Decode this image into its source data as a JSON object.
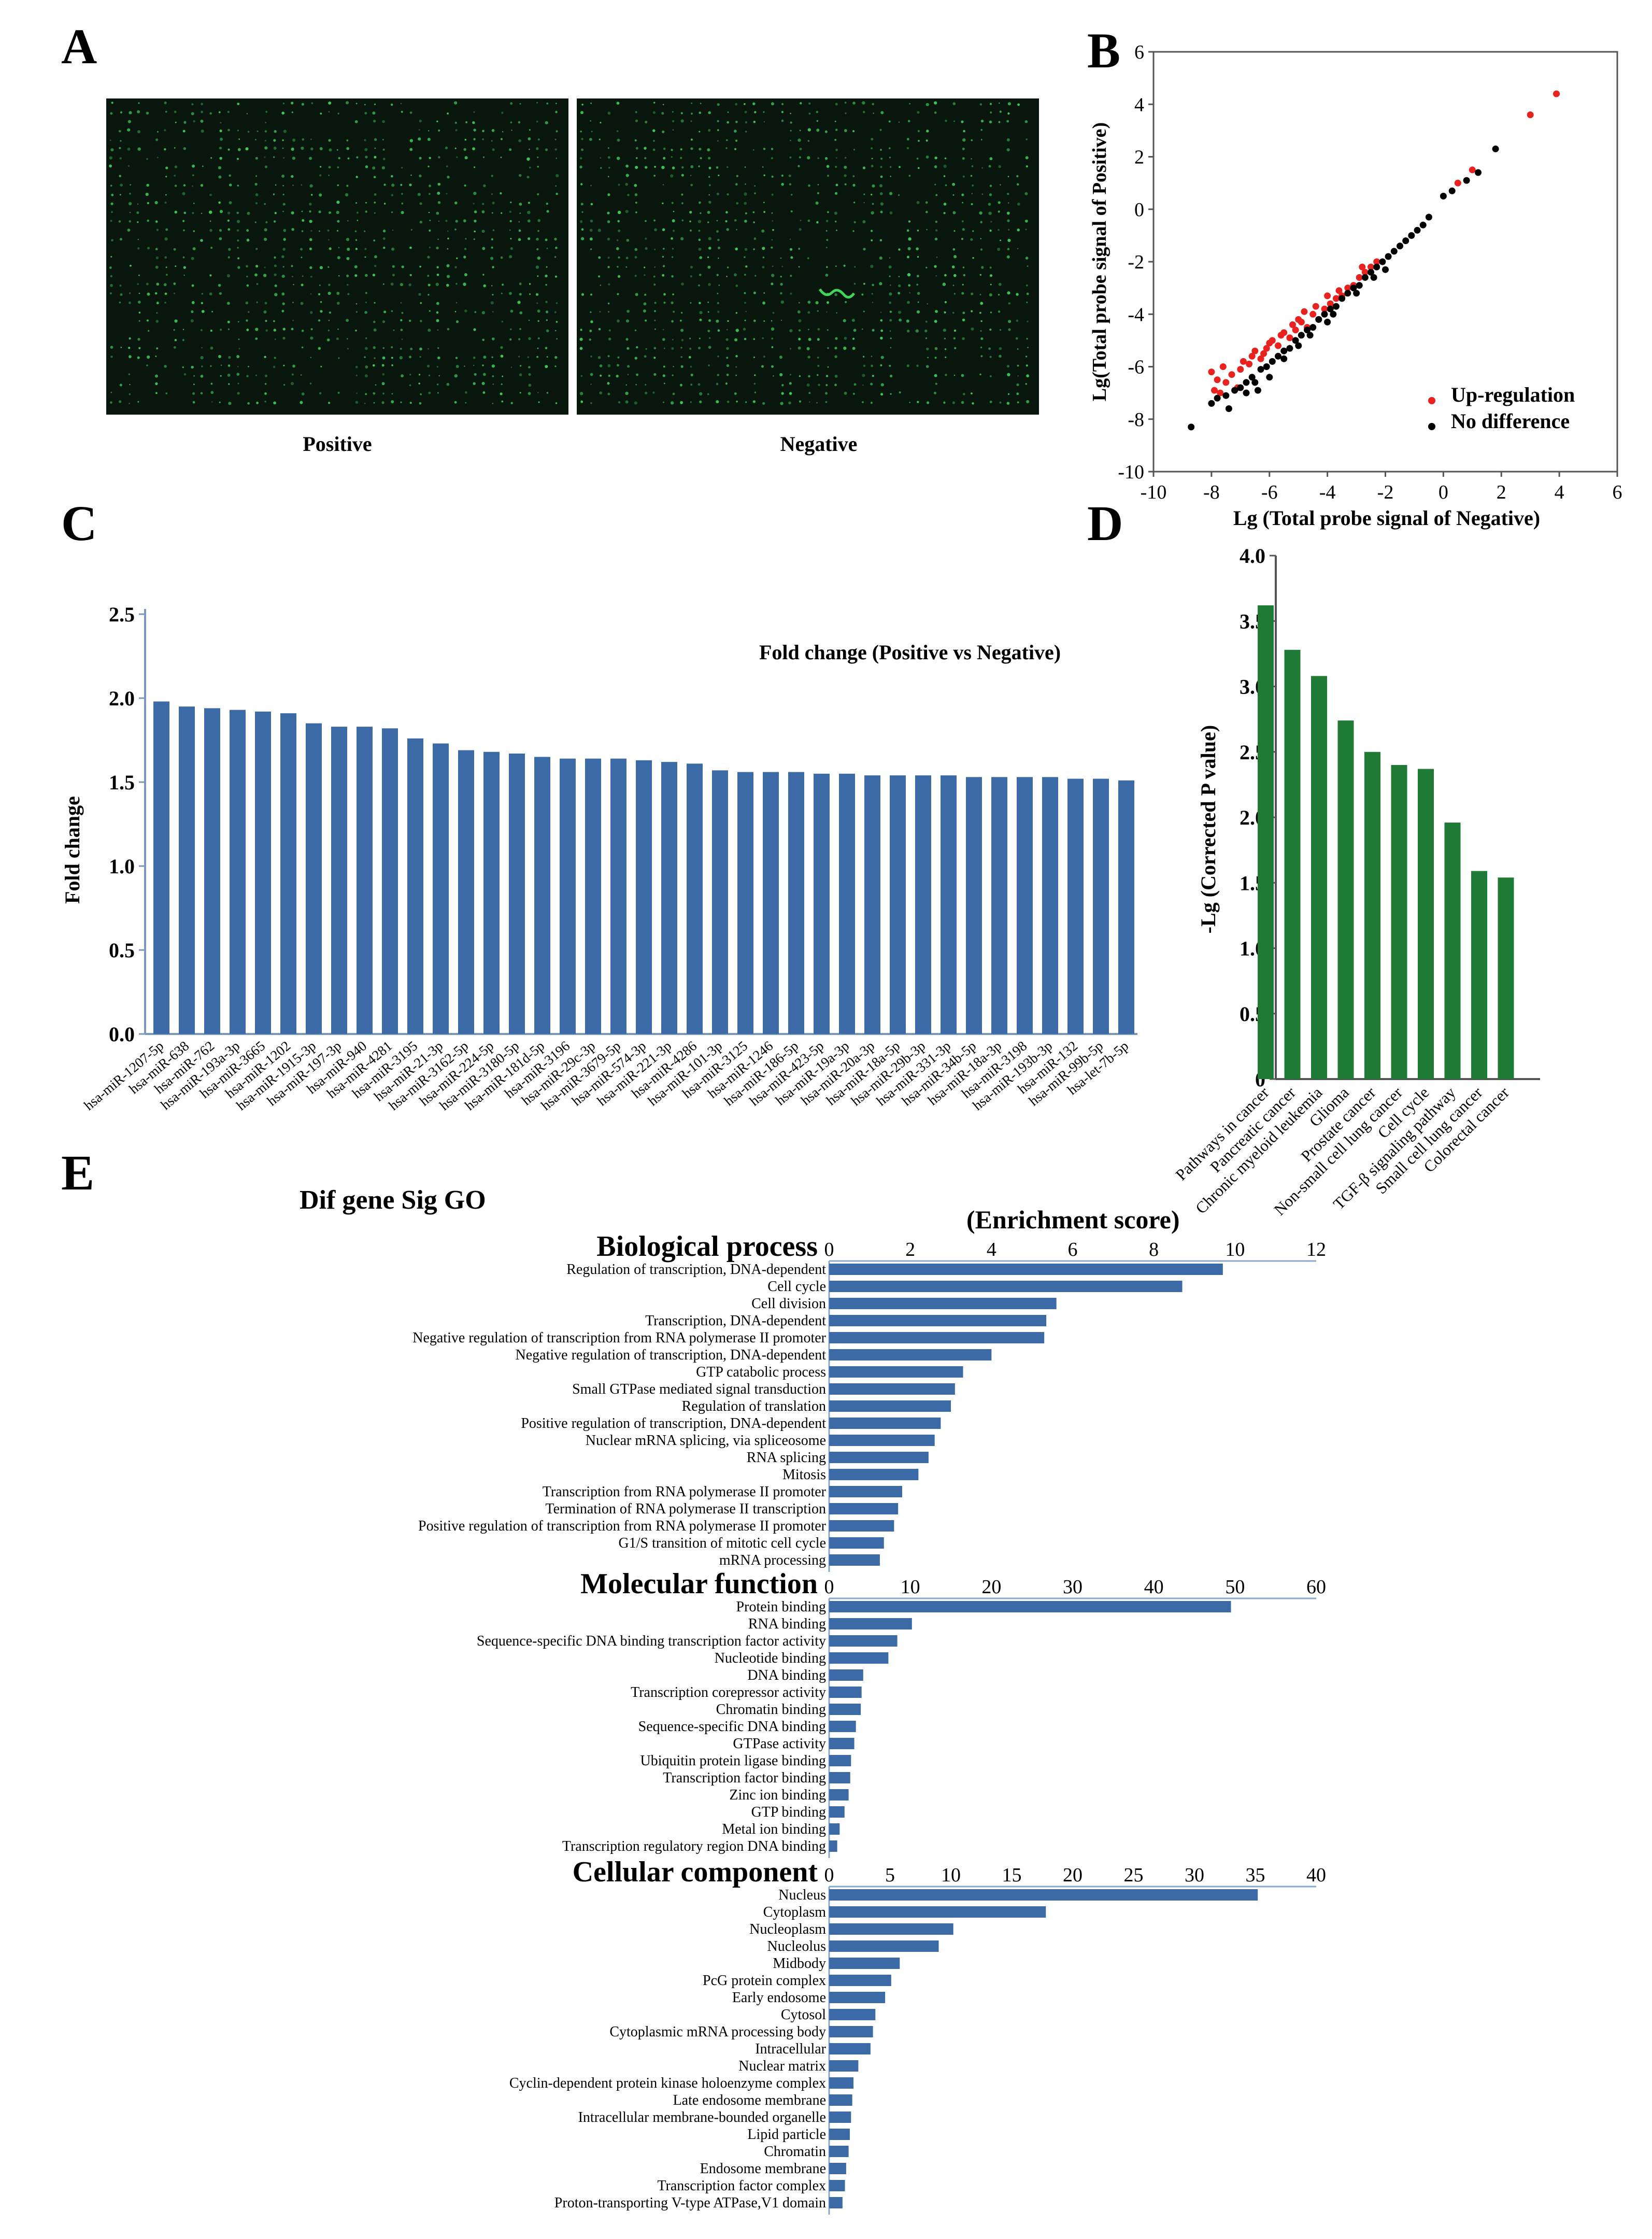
{
  "panel_labels": {
    "a": "A",
    "b": "B",
    "c": "C",
    "d": "D",
    "e": "E"
  },
  "colors": {
    "blue": "#3b6aa6",
    "green": "#1f7a36",
    "red": "#e8221f",
    "black": "#000000",
    "array_bg": "#08160d",
    "spot": "#3fd65b",
    "axis_blue": "#8aa9cf"
  },
  "chart_data": [
    {
      "panel": "A",
      "type": "image-pair",
      "images": [
        {
          "label": "Positive"
        },
        {
          "label": "Negative"
        }
      ]
    },
    {
      "panel": "B",
      "type": "scatter",
      "title": "",
      "xlabel": "Lg (Total probe signal of Negative)",
      "ylabel": "Lg(Total probe signal of Positive)",
      "xlim": [
        -10,
        6
      ],
      "ylim": [
        -10,
        6
      ],
      "xticks": [
        -10,
        -8,
        -6,
        -4,
        -2,
        0,
        2,
        4,
        6
      ],
      "yticks": [
        -10,
        -8,
        -6,
        -4,
        -2,
        0,
        2,
        4,
        6
      ],
      "legend": [
        {
          "name": "Up-regulation",
          "color": "#e8221f"
        },
        {
          "name": "No difference",
          "color": "#000000"
        }
      ],
      "series": [
        {
          "name": "Up-regulation",
          "points": [
            [
              -8.0,
              -6.2
            ],
            [
              -7.8,
              -6.5
            ],
            [
              -7.6,
              -6.0
            ],
            [
              -7.5,
              -6.6
            ],
            [
              -7.3,
              -6.3
            ],
            [
              -7.1,
              -6.8
            ],
            [
              -7.9,
              -6.9
            ],
            [
              -7.7,
              -7.0
            ],
            [
              -6.9,
              -5.8
            ],
            [
              -6.7,
              -5.9
            ],
            [
              -6.5,
              -5.4
            ],
            [
              -6.3,
              -5.7
            ],
            [
              -6.1,
              -5.3
            ],
            [
              -5.9,
              -5.0
            ],
            [
              -5.7,
              -5.2
            ],
            [
              -5.5,
              -4.7
            ],
            [
              -5.3,
              -4.9
            ],
            [
              -5.1,
              -4.6
            ],
            [
              -4.9,
              -4.3
            ],
            [
              -4.7,
              -4.5
            ],
            [
              -4.5,
              -4.0
            ],
            [
              -4.3,
              -4.2
            ],
            [
              -4.1,
              -3.8
            ],
            [
              -3.9,
              -3.6
            ],
            [
              -3.7,
              -3.4
            ],
            [
              -3.5,
              -3.3
            ],
            [
              -3.3,
              -3.0
            ],
            [
              -3.1,
              -2.9
            ],
            [
              -2.9,
              -2.6
            ],
            [
              -2.7,
              -2.4
            ],
            [
              -2.5,
              -2.2
            ],
            [
              -2.3,
              -2.0
            ],
            [
              -4.0,
              -3.3
            ],
            [
              -4.4,
              -3.7
            ],
            [
              -5.0,
              -4.2
            ],
            [
              -5.6,
              -4.8
            ],
            [
              -6.0,
              -5.1
            ],
            [
              -6.6,
              -5.6
            ],
            [
              -3.6,
              -3.1
            ],
            [
              -4.8,
              -3.9
            ],
            [
              -5.2,
              -4.4
            ],
            [
              -2.8,
              -2.2
            ],
            [
              0.5,
              1.0
            ],
            [
              1.0,
              1.5
            ],
            [
              3.0,
              3.6
            ],
            [
              3.9,
              4.4
            ],
            [
              -7.0,
              -6.1
            ],
            [
              -6.2,
              -5.5
            ]
          ]
        },
        {
          "name": "No difference",
          "points": [
            [
              -8.7,
              -8.3
            ],
            [
              -8.0,
              -7.4
            ],
            [
              -7.8,
              -7.2
            ],
            [
              -7.5,
              -7.1
            ],
            [
              -7.2,
              -6.9
            ],
            [
              -7.0,
              -6.8
            ],
            [
              -6.8,
              -6.6
            ],
            [
              -6.6,
              -6.4
            ],
            [
              -6.5,
              -6.6
            ],
            [
              -6.3,
              -6.1
            ],
            [
              -6.1,
              -6.0
            ],
            [
              -5.9,
              -5.8
            ],
            [
              -5.7,
              -5.6
            ],
            [
              -5.5,
              -5.4
            ],
            [
              -5.3,
              -5.3
            ],
            [
              -5.1,
              -5.0
            ],
            [
              -4.9,
              -4.8
            ],
            [
              -4.7,
              -4.6
            ],
            [
              -4.5,
              -4.5
            ],
            [
              -4.3,
              -4.2
            ],
            [
              -4.1,
              -4.0
            ],
            [
              -3.9,
              -3.8
            ],
            [
              -3.7,
              -3.7
            ],
            [
              -3.5,
              -3.4
            ],
            [
              -3.3,
              -3.2
            ],
            [
              -3.1,
              -3.0
            ],
            [
              -2.9,
              -2.9
            ],
            [
              -2.7,
              -2.6
            ],
            [
              -2.5,
              -2.4
            ],
            [
              -2.3,
              -2.2
            ],
            [
              -2.1,
              -2.0
            ],
            [
              -1.9,
              -1.8
            ],
            [
              -1.7,
              -1.6
            ],
            [
              -1.5,
              -1.4
            ],
            [
              -1.3,
              -1.2
            ],
            [
              -1.1,
              -1.0
            ],
            [
              -0.9,
              -0.8
            ],
            [
              -0.7,
              -0.6
            ],
            [
              -0.5,
              -0.3
            ],
            [
              0.0,
              0.5
            ],
            [
              0.3,
              0.7
            ],
            [
              0.8,
              1.1
            ],
            [
              1.2,
              1.4
            ],
            [
              1.8,
              2.3
            ],
            [
              -6.4,
              -6.9
            ],
            [
              -6.0,
              -6.4
            ],
            [
              -5.5,
              -5.7
            ],
            [
              -4.6,
              -4.8
            ],
            [
              -3.8,
              -4.0
            ],
            [
              -3.0,
              -3.2
            ],
            [
              -2.4,
              -2.6
            ],
            [
              -4.0,
              -4.3
            ],
            [
              -5.0,
              -5.2
            ],
            [
              -6.8,
              -7.0
            ],
            [
              -7.4,
              -7.6
            ],
            [
              -2.0,
              -2.3
            ]
          ]
        }
      ]
    },
    {
      "panel": "C",
      "type": "bar",
      "title": "Fold change (Positive vs Negative)",
      "xlabel": "",
      "ylabel": "Fold change",
      "ylim": [
        0,
        2.5
      ],
      "yticks": [
        "0.0",
        "0.5",
        "1.0",
        "1.5",
        "2.0",
        "2.5"
      ],
      "categories": [
        "hsa-miR-1207-5p",
        "hsa-miR-638",
        "hsa-miR-762",
        "hsa-miR-193a-3p",
        "hsa-miR-3665",
        "hsa-miR-1202",
        "hsa-miR-1915-3p",
        "hsa-miR-197-3p",
        "hsa-miR-940",
        "hsa-miR-4281",
        "hsa-miR-3195",
        "hsa-miR-21-3p",
        "hsa-miR-3162-5p",
        "hsa-miR-224-5p",
        "hsa-miR-3180-5p",
        "hsa-miR-181d-5p",
        "hsa-miR-3196",
        "hsa-miR-29c-3p",
        "hsa-miR-3679-5p",
        "hsa-miR-574-3p",
        "hsa-miR-221-3p",
        "hsa-miR-4286",
        "hsa-miR-101-3p",
        "hsa-miR-3125",
        "hsa-miR-1246",
        "hsa-miR-186-5p",
        "hsa-miR-423-5p",
        "hsa-miR-19a-3p",
        "hsa-miR-20a-3p",
        "hsa-miR-18a-5p",
        "hsa-miR-29b-3p",
        "hsa-miR-331-3p",
        "hsa-miR-34b-5p",
        "hsa-miR-18a-3p",
        "hsa-miR-3198",
        "hsa-miR-193b-3p",
        "hsa-miR-132",
        "hsa-miR-99b-5p",
        "hsa-let-7b-5p"
      ],
      "values": [
        1.98,
        1.95,
        1.94,
        1.93,
        1.92,
        1.91,
        1.85,
        1.83,
        1.83,
        1.82,
        1.76,
        1.73,
        1.69,
        1.68,
        1.67,
        1.65,
        1.64,
        1.64,
        1.64,
        1.63,
        1.62,
        1.61,
        1.57,
        1.56,
        1.56,
        1.56,
        1.55,
        1.55,
        1.54,
        1.54,
        1.54,
        1.54,
        1.53,
        1.53,
        1.53,
        1.53,
        1.52,
        1.52,
        1.51
      ],
      "color": "#3b6aa6"
    },
    {
      "panel": "D",
      "type": "bar",
      "title": "",
      "xlabel": "",
      "ylabel": "-Lg (Corrected P value)",
      "ylim": [
        0,
        4.0
      ],
      "yticks": [
        "0",
        "0.5",
        "1.0",
        "1.5",
        "2.0",
        "2.5",
        "3.0",
        "3.5",
        "4.0"
      ],
      "categories": [
        "Pathways in cancer",
        "Pancreatic cancer",
        "Chronic myeloid leukemia",
        "Glioma",
        "Prostate cancer",
        "Non-small cell lung cancer",
        "Cell cycle",
        "TGF-β signaling pathway",
        "Small cell lung cancer",
        "Colorectal cancer"
      ],
      "values": [
        3.62,
        3.28,
        3.08,
        2.74,
        2.5,
        2.4,
        2.37,
        1.96,
        1.59,
        1.54
      ],
      "color": "#1f7a36"
    },
    {
      "panel": "E",
      "type": "bar",
      "orientation": "horizontal",
      "title": "Dif gene Sig GO",
      "xlabel": "(Enrichment score)",
      "color": "#3b6aa6",
      "groups": [
        {
          "name": "Biological process",
          "xlim": [
            0,
            12
          ],
          "xticks": [
            "0",
            "2",
            "4",
            "6",
            "8",
            "10",
            "12"
          ],
          "categories": [
            "Regulation of transcription, DNA-dependent",
            "Cell cycle",
            "Cell division",
            "Transcription, DNA-dependent",
            "Negative regulation of transcription from RNA polymerase II promoter",
            "Negative regulation of transcription, DNA-dependent",
            "GTP catabolic process",
            "Small GTPase mediated signal transduction",
            "Regulation of translation",
            "Positive regulation of transcription, DNA-dependent",
            "Nuclear mRNA splicing, via spliceosome",
            "RNA splicing",
            "Mitosis",
            "Transcription from RNA polymerase II promoter",
            "Termination of RNA polymerase II transcription",
            "Positive regulation of transcription from RNA polymerase II promoter",
            "G1/S transition of mitotic cell cycle",
            "mRNA processing"
          ],
          "values": [
            9.7,
            8.7,
            5.6,
            5.35,
            5.3,
            4.0,
            3.3,
            3.1,
            3.0,
            2.75,
            2.6,
            2.45,
            2.2,
            1.8,
            1.7,
            1.6,
            1.35,
            1.25
          ]
        },
        {
          "name": "Molecular function",
          "xlim": [
            0,
            60
          ],
          "xticks": [
            "0",
            "10",
            "20",
            "30",
            "40",
            "50",
            "60"
          ],
          "categories": [
            "Protein binding",
            "RNA binding",
            "Sequence-specific DNA binding transcription factor activity",
            "Nucleotide binding",
            "DNA binding",
            "Transcription corepressor activity",
            "Chromatin binding",
            "Sequence-specific DNA binding",
            "GTPase activity",
            "Ubiquitin protein ligase binding",
            "Transcription factor binding",
            "Zinc ion binding",
            "GTP binding",
            "Metal ion binding",
            "Transcription regulatory region DNA binding"
          ],
          "values": [
            49.5,
            10.2,
            8.4,
            7.3,
            4.2,
            4.0,
            3.9,
            3.3,
            3.1,
            2.7,
            2.6,
            2.4,
            1.9,
            1.3,
            1.0
          ]
        },
        {
          "name": "Cellular component",
          "xlim": [
            0,
            40
          ],
          "xticks": [
            "0",
            "5",
            "10",
            "15",
            "20",
            "25",
            "30",
            "35",
            "40"
          ],
          "categories": [
            "Nucleus",
            "Cytoplasm",
            "Nucleoplasm",
            "Nucleolus",
            "Midbody",
            "PcG protein complex",
            "Early endosome",
            "Cytosol",
            "Cytoplasmic mRNA processing body",
            "Intracellular",
            "Nuclear matrix",
            "Cyclin-dependent protein kinase holoenzyme complex",
            "Late endosome membrane",
            "Intracellular membrane-bounded organelle",
            "Lipid particle",
            "Chromatin",
            "Endosome membrane",
            "Transcription factor complex",
            "Proton-transporting V-type ATPase,V1 domain"
          ],
          "values": [
            35.2,
            17.8,
            10.2,
            9.0,
            5.8,
            5.1,
            4.6,
            3.8,
            3.6,
            3.4,
            2.4,
            2.0,
            1.9,
            1.8,
            1.7,
            1.6,
            1.4,
            1.3,
            1.1
          ]
        }
      ]
    }
  ]
}
